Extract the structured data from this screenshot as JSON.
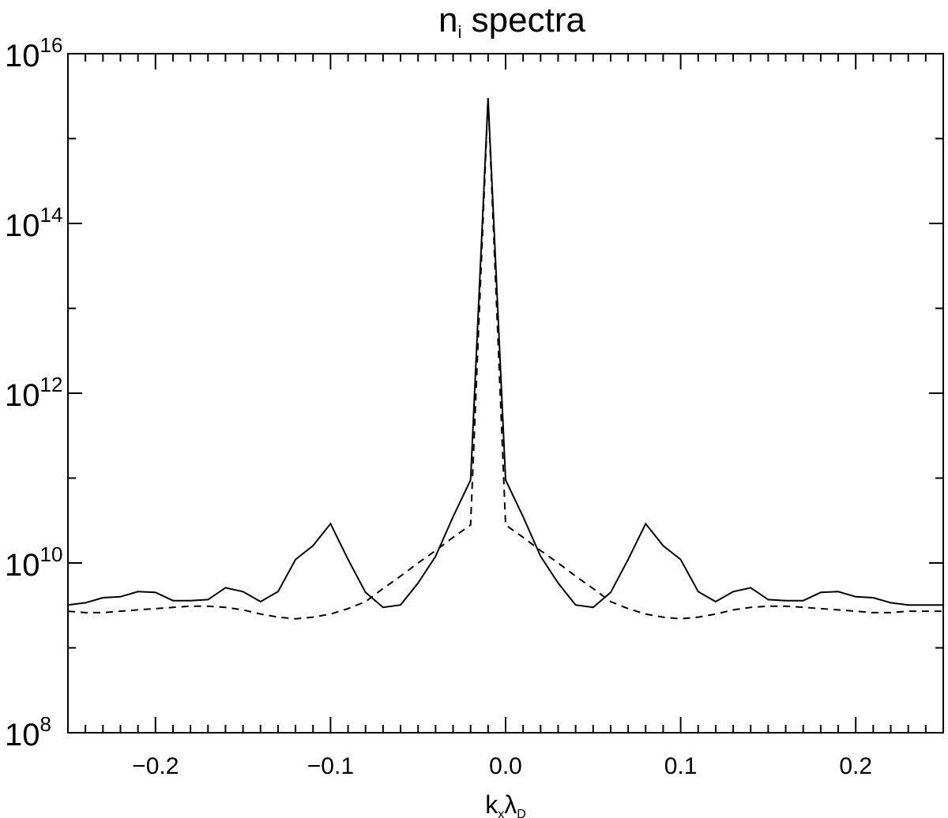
{
  "chart_data": {
    "type": "line",
    "title": {
      "main": "n",
      "sub": "i",
      "rest": " spectra"
    },
    "xlabel": {
      "k": "k",
      "k_sub": "x",
      "lambda": "λ",
      "lambda_sub": "D"
    },
    "ylabel": "",
    "xlim": [
      -0.25,
      0.25
    ],
    "ylim": [
      100000000.0,
      1e+16
    ],
    "yscale": "log",
    "grid": false,
    "x_tick_labels": [
      "−0.2",
      "−0.1",
      "0.0",
      "0.1",
      "0.2"
    ],
    "x_ticks": [
      -0.2,
      -0.1,
      0.0,
      0.1,
      0.2
    ],
    "y_tick_labels": [
      {
        "base": "10",
        "exp": "8"
      },
      {
        "base": "10",
        "exp": "10"
      },
      {
        "base": "10",
        "exp": "12"
      },
      {
        "base": "10",
        "exp": "14"
      },
      {
        "base": "10",
        "exp": "16"
      }
    ],
    "y_ticks": [
      100000000.0,
      10000000000.0,
      1000000000000.0,
      100000000000000.0,
      1e+16
    ],
    "x": [
      -0.25,
      -0.24,
      -0.23,
      -0.22,
      -0.21,
      -0.2,
      -0.19,
      -0.18,
      -0.17,
      -0.16,
      -0.15,
      -0.14,
      -0.13,
      -0.12,
      -0.11,
      -0.1,
      -0.09,
      -0.08,
      -0.07,
      -0.06,
      -0.05,
      -0.04,
      -0.03,
      -0.02,
      -0.01,
      0.0,
      0.01,
      0.02,
      0.03,
      0.04,
      0.05,
      0.06,
      0.07,
      0.08,
      0.09,
      0.1,
      0.11,
      0.12,
      0.13,
      0.14,
      0.15,
      0.16,
      0.17,
      0.18,
      0.19,
      0.2,
      0.21,
      0.22,
      0.23,
      0.24,
      0.25
    ],
    "series": [
      {
        "style": "solid",
        "values": [
          3200000000.0,
          3400000000.0,
          3900000000.0,
          4000000000.0,
          4600000000.0,
          4500000000.0,
          3600000000.0,
          3600000000.0,
          3700000000.0,
          5100000000.0,
          4600000000.0,
          3500000000.0,
          4600000000.0,
          11000000000.0,
          16000000000.0,
          29000000000.0,
          11000000000.0,
          4500000000.0,
          3000000000.0,
          3200000000.0,
          5800000000.0,
          12000000000.0,
          35000000000.0,
          95000000000.0,
          3000000000000000.0,
          95000000000.0,
          35000000000.0,
          12000000000.0,
          5800000000.0,
          3200000000.0,
          3000000000.0,
          4500000000.0,
          11000000000.0,
          29000000000.0,
          16000000000.0,
          11000000000.0,
          4600000000.0,
          3500000000.0,
          4600000000.0,
          5100000000.0,
          3700000000.0,
          3600000000.0,
          3600000000.0,
          4500000000.0,
          4600000000.0,
          4000000000.0,
          3900000000.0,
          3400000000.0,
          3200000000.0,
          3200000000.0,
          3200000000.0
        ]
      },
      {
        "style": "dashed",
        "values": [
          2700000000.0,
          2600000000.0,
          2600000000.0,
          2700000000.0,
          2800000000.0,
          2900000000.0,
          3000000000.0,
          3100000000.0,
          3100000000.0,
          3000000000.0,
          2800000000.0,
          2500000000.0,
          2300000000.0,
          2200000000.0,
          2300000000.0,
          2500000000.0,
          2900000000.0,
          3500000000.0,
          5000000000.0,
          7000000000.0,
          10000000000.0,
          14000000000.0,
          20000000000.0,
          28000000000.0,
          3000000000000000.0,
          28000000000.0,
          20000000000.0,
          14000000000.0,
          10000000000.0,
          7000000000.0,
          5000000000.0,
          3500000000.0,
          2900000000.0,
          2500000000.0,
          2300000000.0,
          2200000000.0,
          2300000000.0,
          2500000000.0,
          2800000000.0,
          3000000000.0,
          3100000000.0,
          3100000000.0,
          3000000000.0,
          2900000000.0,
          2800000000.0,
          2700000000.0,
          2600000000.0,
          2600000000.0,
          2700000000.0,
          2700000000.0,
          2700000000.0
        ]
      }
    ]
  }
}
